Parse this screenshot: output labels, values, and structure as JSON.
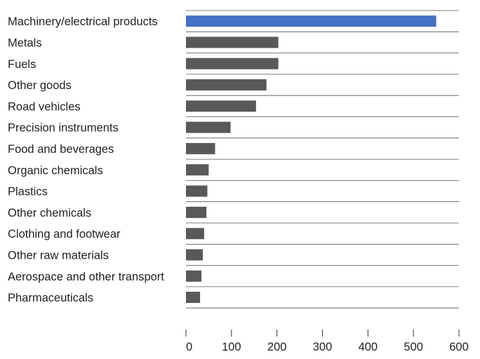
{
  "chart_data": {
    "type": "bar",
    "orientation": "horizontal",
    "categories": [
      "Machinery/electrical products",
      "Metals",
      "Fuels",
      "Other goods",
      "Road vehicles",
      "Precision instruments",
      "Food and beverages",
      "Organic chemicals",
      "Plastics",
      "Other chemicals",
      "Clothing and footwear",
      "Other raw materials",
      "Aerospace and other transport",
      "Pharmaceuticals"
    ],
    "values": [
      550,
      203,
      203,
      177,
      154,
      98,
      64,
      50,
      47,
      45,
      40,
      37,
      34,
      31
    ],
    "highlight_index": 0,
    "colors": {
      "highlight": "#4472c4",
      "bar": "#595959",
      "gridline": "#555555",
      "axis": "#333333",
      "text": "#222222"
    },
    "xticks": [
      0,
      100,
      200,
      300,
      400,
      500,
      600
    ],
    "xlim": [
      0,
      600
    ],
    "title": "",
    "xlabel": "",
    "ylabel": "",
    "grid": "horizontal separators between rows",
    "legend": "none"
  }
}
